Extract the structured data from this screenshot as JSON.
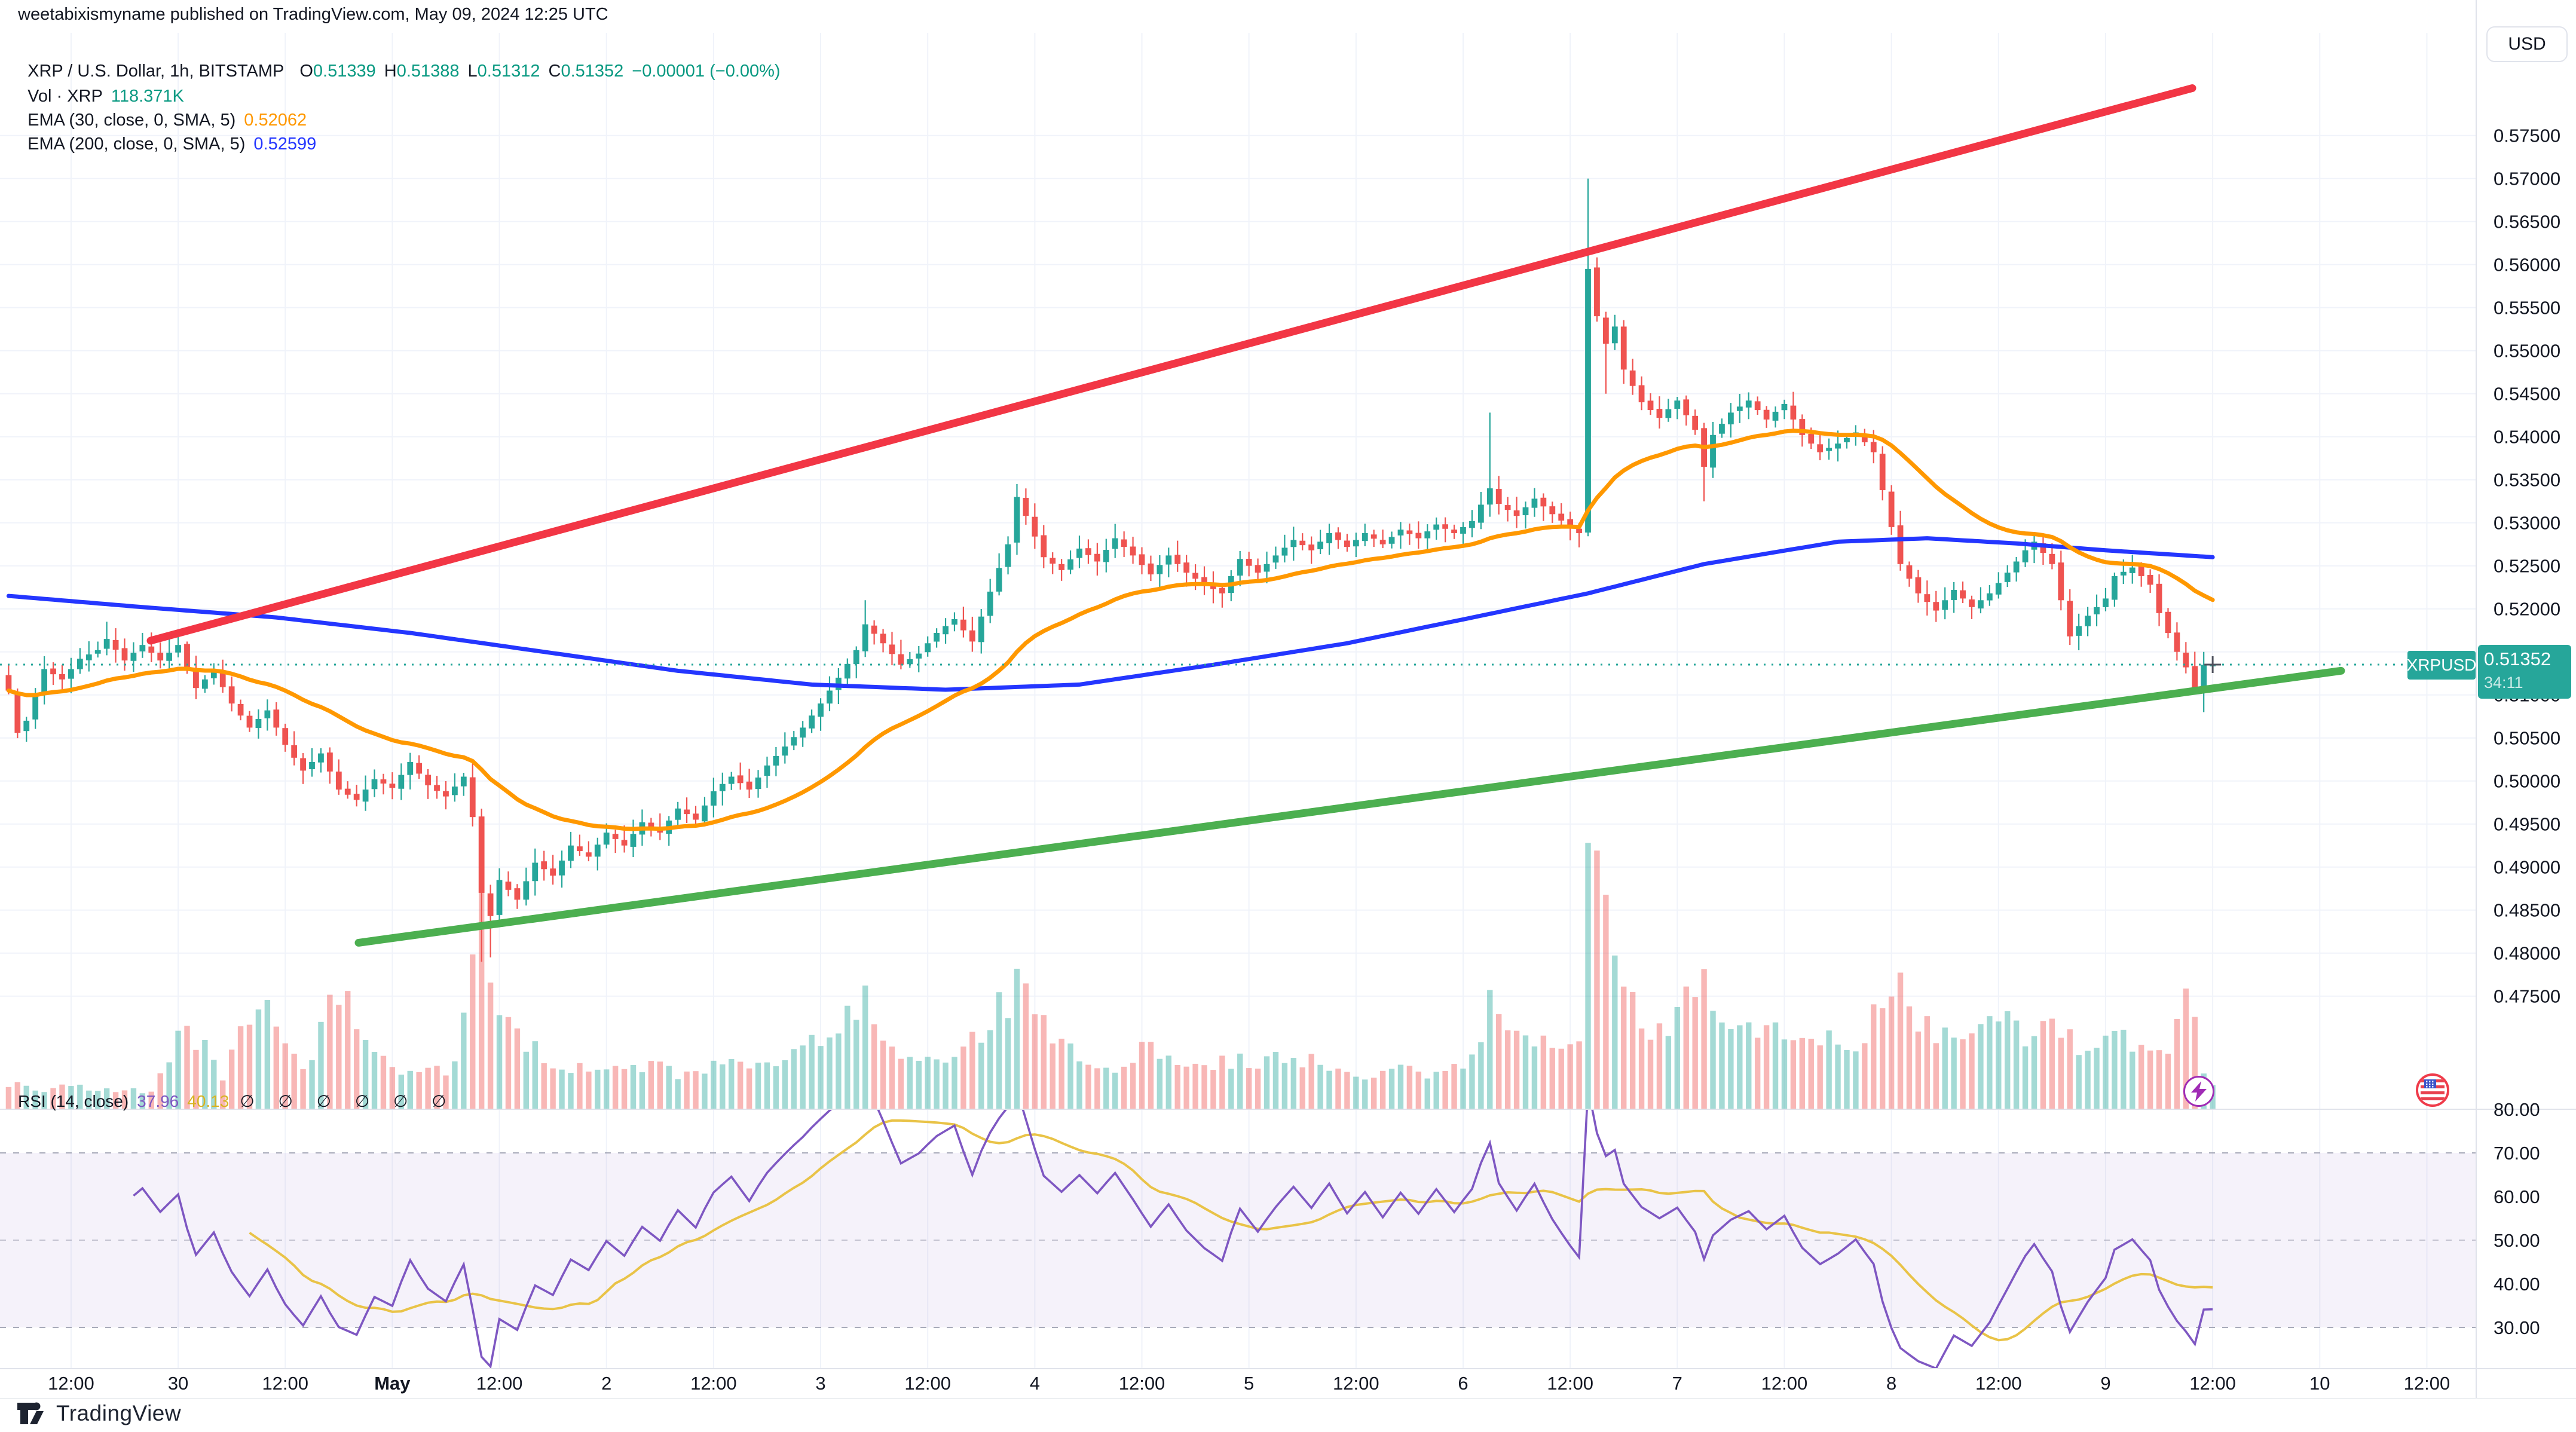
{
  "header": {
    "published_line": "weetabixismyname published on TradingView.com, May 09, 2024 12:25 UTC",
    "symbol_line": {
      "text": "XRP / U.S. Dollar, 1h, BITSTAMP",
      "o": "O",
      "o_v": "0.51339",
      "h": "H",
      "h_v": "0.51388",
      "l": "L",
      "l_v": "0.51312",
      "c": "C",
      "c_v": "0.51352",
      "change": "−0.00001 (−0.00%)"
    },
    "volume_line": {
      "label": "Vol · XRP",
      "value": "118.371K"
    },
    "ema30_line": {
      "label": "EMA (30, close, 0, SMA, 5)",
      "value": "0.52062"
    },
    "ema200_line": {
      "label": "EMA (200, close, 0, SMA, 5)",
      "value": "0.52599"
    }
  },
  "rsi_legend": {
    "label": "RSI (14, close)",
    "value": "37.96",
    "ma_value": "40.13",
    "empty_slots": "∅ ∅ ∅ ∅ ∅ ∅"
  },
  "price_scale": {
    "currency": "USD",
    "symbol_chip": "XRPUSD",
    "price_chip": "0.51352",
    "countdown": "34:11",
    "ticks": [
      {
        "v": 0.575,
        "t": "0.57500"
      },
      {
        "v": 0.57,
        "t": "0.57000"
      },
      {
        "v": 0.565,
        "t": "0.56500"
      },
      {
        "v": 0.56,
        "t": "0.56000"
      },
      {
        "v": 0.555,
        "t": "0.55500"
      },
      {
        "v": 0.55,
        "t": "0.55000"
      },
      {
        "v": 0.545,
        "t": "0.54500"
      },
      {
        "v": 0.54,
        "t": "0.54000"
      },
      {
        "v": 0.535,
        "t": "0.53500"
      },
      {
        "v": 0.53,
        "t": "0.53000"
      },
      {
        "v": 0.525,
        "t": "0.52500"
      },
      {
        "v": 0.52,
        "t": "0.52000"
      },
      {
        "v": 0.515,
        "t": "0.51500"
      },
      {
        "v": 0.51,
        "t": "0.51000"
      },
      {
        "v": 0.505,
        "t": "0.50500"
      },
      {
        "v": 0.5,
        "t": "0.50000"
      },
      {
        "v": 0.495,
        "t": "0.49500"
      },
      {
        "v": 0.49,
        "t": "0.49000"
      },
      {
        "v": 0.485,
        "t": "0.48500"
      },
      {
        "v": 0.48,
        "t": "0.48000"
      },
      {
        "v": 0.475,
        "t": "0.47500"
      }
    ],
    "rsi_ticks": [
      {
        "v": 80,
        "t": "80.00"
      },
      {
        "v": 70,
        "t": "70.00"
      },
      {
        "v": 60,
        "t": "60.00"
      },
      {
        "v": 50,
        "t": "50.00"
      },
      {
        "v": 40,
        "t": "40.00"
      },
      {
        "v": 30,
        "t": "30.00"
      }
    ]
  },
  "time_scale": {
    "labels": [
      [
        7,
        "12:00",
        0
      ],
      [
        19,
        "30",
        0
      ],
      [
        31,
        "12:00",
        0
      ],
      [
        43,
        "May",
        1
      ],
      [
        55,
        "12:00",
        0
      ],
      [
        67,
        "2",
        0
      ],
      [
        79,
        "12:00",
        0
      ],
      [
        91,
        "3",
        0
      ],
      [
        103,
        "12:00",
        0
      ],
      [
        115,
        "4",
        0
      ],
      [
        127,
        "12:00",
        0
      ],
      [
        139,
        "5",
        0
      ],
      [
        151,
        "12:00",
        0
      ],
      [
        163,
        "6",
        0
      ],
      [
        175,
        "12:00",
        0
      ],
      [
        187,
        "7",
        0
      ],
      [
        199,
        "12:00",
        0
      ],
      [
        211,
        "8",
        0
      ],
      [
        223,
        "12:00",
        0
      ],
      [
        235,
        "9",
        0
      ],
      [
        247,
        "12:00",
        0
      ],
      [
        259,
        "10",
        0
      ],
      [
        271,
        "12:00",
        0
      ]
    ]
  },
  "footer": {
    "brand": "TradingView"
  },
  "colors": {
    "up": "#26a69a",
    "down": "#ef5350",
    "vol_up": "rgba(38,166,154,0.42)",
    "vol_down": "rgba(239,83,80,0.42)",
    "ema30": "#ff9800",
    "ema200": "#2436ff",
    "trend_red": "#f23645",
    "trend_green": "#4caf50",
    "rsi": "#7e57c2",
    "rsi_ma": "#e9c347",
    "rsi_band": "rgba(126,87,194,0.08)",
    "rsi_guide": "#9b9eae",
    "grid": "#f0f3fa",
    "axis_text": "#131722",
    "teal_text": "#089981",
    "chip": "#26a69a",
    "border": "#e0e3eb",
    "crosshair": "#50535e",
    "price_line": "#26a69a"
  },
  "chart_data": {
    "type": "candlestick",
    "symbol": "XRP/USD",
    "interval": "1h",
    "exchange": "BITSTAMP",
    "legend_ohlc": {
      "open": 0.51339,
      "high": 0.51388,
      "low": 0.51312,
      "close": 0.51352,
      "change": -1e-05,
      "change_pct": "-0.00%"
    },
    "indicators": {
      "ema30": 0.52062,
      "ema200": 0.52599,
      "rsi14": 37.96,
      "rsi_ma": 40.13,
      "volume": "118.371K"
    },
    "bars": 248,
    "time_note": "hourly bars, bar 43 = May 1 00:00, bar 247 = May 9 12:00 (current)",
    "ylim": [
      0.475,
      0.575
    ],
    "rsi_ylim": [
      20,
      80
    ],
    "close_anchors": [
      [
        0,
        0.5105
      ],
      [
        1,
        0.5056
      ],
      [
        2,
        0.507
      ],
      [
        4,
        0.513
      ],
      [
        6,
        0.5118
      ],
      [
        8,
        0.5142
      ],
      [
        10,
        0.5152
      ],
      [
        11,
        0.5165
      ],
      [
        13,
        0.514
      ],
      [
        15,
        0.5158
      ],
      [
        17,
        0.514
      ],
      [
        19,
        0.5158
      ],
      [
        20,
        0.5132
      ],
      [
        21,
        0.5108
      ],
      [
        23,
        0.5128
      ],
      [
        25,
        0.509
      ],
      [
        27,
        0.5062
      ],
      [
        29,
        0.5082
      ],
      [
        31,
        0.5042
      ],
      [
        33,
        0.5012
      ],
      [
        35,
        0.5032
      ],
      [
        37,
        0.499
      ],
      [
        39,
        0.4978
      ],
      [
        41,
        0.5002
      ],
      [
        43,
        0.4992
      ],
      [
        45,
        0.5022
      ],
      [
        47,
        0.4995
      ],
      [
        49,
        0.4982
      ],
      [
        51,
        0.5005
      ],
      [
        52,
        0.4958
      ],
      [
        53,
        0.487
      ],
      [
        54,
        0.4843
      ],
      [
        55,
        0.4885
      ],
      [
        57,
        0.4862
      ],
      [
        59,
        0.4905
      ],
      [
        61,
        0.489
      ],
      [
        63,
        0.4925
      ],
      [
        65,
        0.4912
      ],
      [
        67,
        0.494
      ],
      [
        69,
        0.4925
      ],
      [
        71,
        0.4952
      ],
      [
        73,
        0.494
      ],
      [
        75,
        0.4968
      ],
      [
        77,
        0.4955
      ],
      [
        79,
        0.4988
      ],
      [
        81,
        0.5005
      ],
      [
        83,
        0.499
      ],
      [
        85,
        0.5018
      ],
      [
        87,
        0.504
      ],
      [
        89,
        0.5062
      ],
      [
        91,
        0.509
      ],
      [
        93,
        0.512
      ],
      [
        95,
        0.5152
      ],
      [
        96,
        0.5182
      ],
      [
        98,
        0.516
      ],
      [
        100,
        0.5135
      ],
      [
        102,
        0.5148
      ],
      [
        104,
        0.5172
      ],
      [
        106,
        0.5188
      ],
      [
        108,
        0.5162
      ],
      [
        110,
        0.522
      ],
      [
        112,
        0.5275
      ],
      [
        113,
        0.533
      ],
      [
        114,
        0.5308
      ],
      [
        116,
        0.526
      ],
      [
        118,
        0.5245
      ],
      [
        120,
        0.527
      ],
      [
        122,
        0.5255
      ],
      [
        124,
        0.5282
      ],
      [
        126,
        0.5262
      ],
      [
        128,
        0.524
      ],
      [
        130,
        0.5262
      ],
      [
        132,
        0.5242
      ],
      [
        134,
        0.5228
      ],
      [
        136,
        0.5218
      ],
      [
        138,
        0.5258
      ],
      [
        140,
        0.5242
      ],
      [
        142,
        0.5262
      ],
      [
        144,
        0.528
      ],
      [
        146,
        0.5268
      ],
      [
        148,
        0.5288
      ],
      [
        150,
        0.5272
      ],
      [
        152,
        0.5288
      ],
      [
        154,
        0.5275
      ],
      [
        156,
        0.5292
      ],
      [
        158,
        0.5282
      ],
      [
        160,
        0.5298
      ],
      [
        162,
        0.5288
      ],
      [
        164,
        0.5302
      ],
      [
        166,
        0.534
      ],
      [
        167,
        0.5322
      ],
      [
        169,
        0.5308
      ],
      [
        171,
        0.5328
      ],
      [
        173,
        0.531
      ],
      [
        175,
        0.5295
      ],
      [
        176,
        0.5288
      ],
      [
        177,
        0.5595
      ],
      [
        178,
        0.554
      ],
      [
        179,
        0.5508
      ],
      [
        180,
        0.5528
      ],
      [
        181,
        0.5478
      ],
      [
        183,
        0.544
      ],
      [
        185,
        0.5422
      ],
      [
        187,
        0.5442
      ],
      [
        189,
        0.5408
      ],
      [
        190,
        0.5365
      ],
      [
        191,
        0.5402
      ],
      [
        193,
        0.5428
      ],
      [
        195,
        0.5442
      ],
      [
        197,
        0.542
      ],
      [
        199,
        0.5438
      ],
      [
        201,
        0.5402
      ],
      [
        203,
        0.5382
      ],
      [
        205,
        0.5392
      ],
      [
        207,
        0.5405
      ],
      [
        209,
        0.5382
      ],
      [
        210,
        0.5338
      ],
      [
        211,
        0.5295
      ],
      [
        212,
        0.5252
      ],
      [
        214,
        0.5218
      ],
      [
        216,
        0.5198
      ],
      [
        218,
        0.5222
      ],
      [
        220,
        0.5202
      ],
      [
        222,
        0.5218
      ],
      [
        224,
        0.5242
      ],
      [
        226,
        0.5268
      ],
      [
        227,
        0.5278
      ],
      [
        229,
        0.5252
      ],
      [
        231,
        0.5168
      ],
      [
        233,
        0.5192
      ],
      [
        235,
        0.5212
      ],
      [
        236,
        0.5238
      ],
      [
        238,
        0.5248
      ],
      [
        240,
        0.5228
      ],
      [
        241,
        0.5195
      ],
      [
        242,
        0.5172
      ],
      [
        243,
        0.515
      ],
      [
        244,
        0.5132
      ],
      [
        245,
        0.5108
      ],
      [
        246,
        0.5135
      ],
      [
        247,
        0.51352
      ]
    ],
    "wick_overrides": {
      "11": {
        "h": 0.5185
      },
      "20": {
        "h": 0.5162
      },
      "53": {
        "l": 0.479
      },
      "54": {
        "l": 0.4795
      },
      "96": {
        "h": 0.521
      },
      "113": {
        "h": 0.5345
      },
      "166": {
        "h": 0.5428
      },
      "177": {
        "h": 0.57
      },
      "179": {
        "l": 0.545
      },
      "190": {
        "l": 0.5325
      },
      "231": {
        "l": 0.5158
      },
      "244": {
        "l": 0.5125
      },
      "245": {
        "l": 0.5105
      },
      "246": {
        "l": 0.508,
        "h": 0.515
      },
      "247": {
        "o": 0.51339,
        "h": 0.51388,
        "l": 0.51312,
        "c": 0.51352
      }
    },
    "volume_anchors": [
      [
        0,
        0.1
      ],
      [
        4,
        0.07
      ],
      [
        8,
        0.09
      ],
      [
        12,
        0.06
      ],
      [
        16,
        0.07
      ],
      [
        20,
        0.3
      ],
      [
        24,
        0.12
      ],
      [
        28,
        0.42
      ],
      [
        31,
        0.2
      ],
      [
        34,
        0.17
      ],
      [
        37,
        0.45
      ],
      [
        40,
        0.22
      ],
      [
        43,
        0.16
      ],
      [
        46,
        0.12
      ],
      [
        50,
        0.15
      ],
      [
        52,
        0.55
      ],
      [
        53,
        0.88
      ],
      [
        54,
        0.5
      ],
      [
        56,
        0.28
      ],
      [
        60,
        0.18
      ],
      [
        64,
        0.14
      ],
      [
        68,
        0.13
      ],
      [
        72,
        0.16
      ],
      [
        76,
        0.12
      ],
      [
        80,
        0.18
      ],
      [
        84,
        0.14
      ],
      [
        88,
        0.2
      ],
      [
        92,
        0.26
      ],
      [
        96,
        0.38
      ],
      [
        100,
        0.22
      ],
      [
        104,
        0.18
      ],
      [
        108,
        0.25
      ],
      [
        113,
        0.45
      ],
      [
        116,
        0.32
      ],
      [
        120,
        0.2
      ],
      [
        124,
        0.16
      ],
      [
        128,
        0.22
      ],
      [
        132,
        0.15
      ],
      [
        136,
        0.18
      ],
      [
        140,
        0.17
      ],
      [
        144,
        0.2
      ],
      [
        148,
        0.15
      ],
      [
        152,
        0.12
      ],
      [
        156,
        0.14
      ],
      [
        160,
        0.12
      ],
      [
        164,
        0.2
      ],
      [
        166,
        0.38
      ],
      [
        170,
        0.26
      ],
      [
        174,
        0.2
      ],
      [
        176,
        0.3
      ],
      [
        177,
        0.92
      ],
      [
        178,
        1.0
      ],
      [
        179,
        0.65
      ],
      [
        181,
        0.42
      ],
      [
        184,
        0.28
      ],
      [
        187,
        0.32
      ],
      [
        190,
        0.48
      ],
      [
        193,
        0.26
      ],
      [
        196,
        0.32
      ],
      [
        199,
        0.24
      ],
      [
        202,
        0.3
      ],
      [
        205,
        0.22
      ],
      [
        208,
        0.26
      ],
      [
        210,
        0.4
      ],
      [
        212,
        0.42
      ],
      [
        215,
        0.3
      ],
      [
        218,
        0.24
      ],
      [
        221,
        0.28
      ],
      [
        224,
        0.32
      ],
      [
        227,
        0.26
      ],
      [
        230,
        0.3
      ],
      [
        233,
        0.2
      ],
      [
        236,
        0.28
      ],
      [
        239,
        0.2
      ],
      [
        242,
        0.24
      ],
      [
        244,
        0.48
      ],
      [
        246,
        0.16
      ],
      [
        247,
        0.08
      ]
    ],
    "ema200_anchors": [
      [
        0,
        0.5215
      ],
      [
        15,
        0.5202
      ],
      [
        30,
        0.519
      ],
      [
        45,
        0.5172
      ],
      [
        60,
        0.515
      ],
      [
        75,
        0.5128
      ],
      [
        90,
        0.5112
      ],
      [
        105,
        0.5106
      ],
      [
        120,
        0.5112
      ],
      [
        135,
        0.5135
      ],
      [
        150,
        0.516
      ],
      [
        165,
        0.5192
      ],
      [
        177,
        0.5218
      ],
      [
        190,
        0.5252
      ],
      [
        205,
        0.5278
      ],
      [
        215,
        0.5282
      ],
      [
        225,
        0.5276
      ],
      [
        235,
        0.5268
      ],
      [
        247,
        0.526
      ]
    ],
    "drawings": {
      "resistance_line": {
        "x1": 252,
        "p1": 0.5163,
        "x2": 3668,
        "p2": 0.5805
      },
      "support_line": {
        "x1": 600,
        "p1": 0.4812,
        "x2": 3917,
        "p2": 0.5128
      }
    },
    "current_price": 0.51352,
    "rsi_guides": [
      70,
      50,
      30
    ]
  }
}
